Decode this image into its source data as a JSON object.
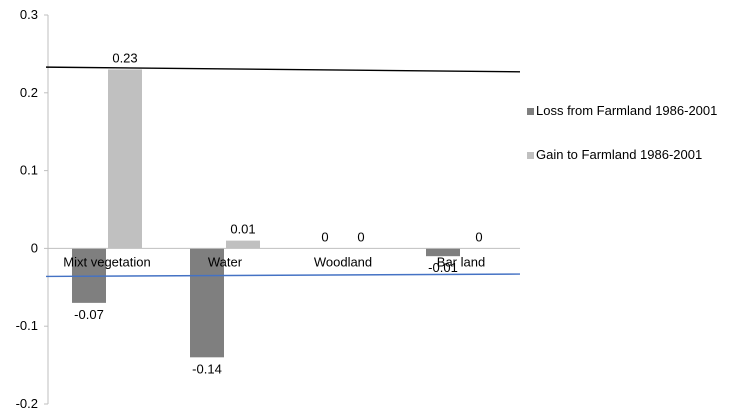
{
  "chart_data": {
    "type": "bar",
    "categories": [
      "Mixt vegetation",
      "Water",
      "Woodland",
      "Bar land"
    ],
    "series": [
      {
        "name": "Loss from Farmland 1986-2001",
        "values": [
          -0.07,
          -0.14,
          0,
          -0.01
        ],
        "color": "#7f7f7f"
      },
      {
        "name": "Gain to Farmland 1986-2001",
        "values": [
          0.23,
          0.01,
          0,
          0
        ],
        "color": "#c0c0c0"
      }
    ],
    "data_labels": [
      [
        "-0.07",
        "-0.14",
        "0",
        "-0.01"
      ],
      [
        "0.23",
        "0.01",
        "0",
        "0"
      ]
    ],
    "y_ticks": [
      "-0.2",
      "-0.1",
      "0",
      "0.1",
      "0.2",
      "0.3"
    ],
    "ylim": [
      -0.2,
      0.3
    ],
    "grid": false,
    "legend_position": "right",
    "trend_lines": [
      {
        "color": "#000000",
        "y_start": 0.233,
        "y_end": 0.227
      },
      {
        "color": "#4472c4",
        "y_start": -0.036,
        "y_end": -0.033
      }
    ]
  }
}
